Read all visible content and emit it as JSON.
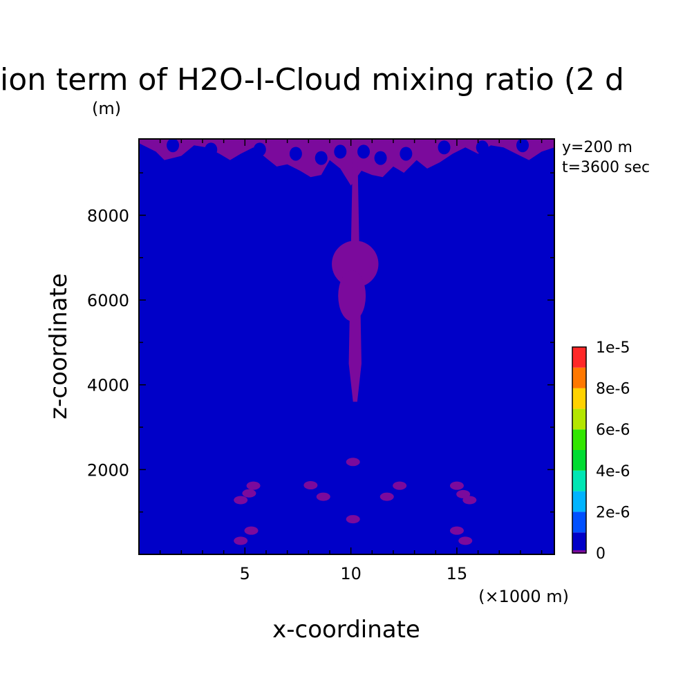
{
  "chart_data": {
    "type": "heatmap",
    "title": "ion term of H2O-I-Cloud mixing ratio (2 d",
    "title_unit": "(m)",
    "xlabel": "x-coordinate",
    "ylabel": "z-coordinate",
    "x_unit_note": "(×1000 m)",
    "annotations": [
      "y=200 m",
      "t=3600 sec"
    ],
    "xlim": [
      0,
      19.6
    ],
    "ylim": [
      0,
      9800
    ],
    "x_ticks": [
      {
        "value": 5,
        "label": "5"
      },
      {
        "value": 10,
        "label": "10"
      },
      {
        "value": 15,
        "label": "15"
      }
    ],
    "y_ticks": [
      {
        "value": 2000,
        "label": "2000"
      },
      {
        "value": 4000,
        "label": "4000"
      },
      {
        "value": 6000,
        "label": "6000"
      },
      {
        "value": 8000,
        "label": "8000"
      }
    ],
    "background_level_color": "#0000c8",
    "feature_level_color": "#7b0a9c",
    "colorbar": {
      "levels": [
        0,
        1e-06,
        2e-06,
        3e-06,
        4e-06,
        5e-06,
        6e-06,
        7e-06,
        8e-06,
        9e-06,
        1e-05
      ],
      "labels": [
        "0",
        "2e-6",
        "4e-6",
        "6e-6",
        "8e-6",
        "1e-5"
      ],
      "colors": [
        "#0000c8",
        "#0050ff",
        "#00b4ff",
        "#00e6b4",
        "#00dc32",
        "#32e600",
        "#b4e600",
        "#ffd200",
        "#ff7800",
        "#ff2828"
      ],
      "underflow_color": "#7b0a9c"
    },
    "regions": [
      {
        "name": "upper-cloud-band",
        "x": [
          0.0,
          0.8,
          1.2,
          2.0,
          2.6,
          3.2,
          3.8,
          4.3,
          4.8,
          5.4,
          6.0,
          6.5,
          7.0,
          7.6,
          8.1,
          8.6,
          9.0,
          9.5,
          10.0,
          10.5,
          11.0,
          11.5,
          12.0,
          12.5,
          13.1,
          13.6,
          14.2,
          14.8,
          15.4,
          16.0,
          16.6,
          17.2,
          17.8,
          18.4,
          19.0,
          19.6
        ],
        "z_top": 9800,
        "z_bottom": [
          9700,
          9500,
          9300,
          9400,
          9650,
          9600,
          9450,
          9300,
          9450,
          9600,
          9350,
          9150,
          9200,
          9050,
          8900,
          8950,
          9300,
          9100,
          8700,
          9050,
          8950,
          8900,
          9150,
          9000,
          9300,
          9100,
          9250,
          9450,
          9600,
          9450,
          9650,
          9600,
          9450,
          9300,
          9500,
          9600
        ]
      },
      {
        "name": "central-column",
        "x": [
          9.9,
          10.1,
          10.3,
          10.5
        ],
        "z": [
          3600,
          9800
        ]
      },
      {
        "name": "column-bulge-upper",
        "x": [
          9.1,
          11.3
        ],
        "z": [
          6300,
          7400
        ]
      },
      {
        "name": "column-bulge-mid",
        "x": [
          9.4,
          10.7
        ],
        "z": [
          5500,
          6700
        ]
      }
    ],
    "patches": [
      {
        "x": 4.8,
        "z": 1280
      },
      {
        "x": 5.2,
        "z": 1440
      },
      {
        "x": 5.4,
        "z": 1620
      },
      {
        "x": 8.1,
        "z": 1630
      },
      {
        "x": 8.7,
        "z": 1360
      },
      {
        "x": 10.1,
        "z": 2180
      },
      {
        "x": 10.1,
        "z": 830
      },
      {
        "x": 11.7,
        "z": 1360
      },
      {
        "x": 12.3,
        "z": 1620
      },
      {
        "x": 15.0,
        "z": 1620
      },
      {
        "x": 15.3,
        "z": 1420
      },
      {
        "x": 15.6,
        "z": 1280
      },
      {
        "x": 4.8,
        "z": 320
      },
      {
        "x": 5.3,
        "z": 560
      },
      {
        "x": 15.0,
        "z": 560
      },
      {
        "x": 15.4,
        "z": 320
      }
    ]
  }
}
